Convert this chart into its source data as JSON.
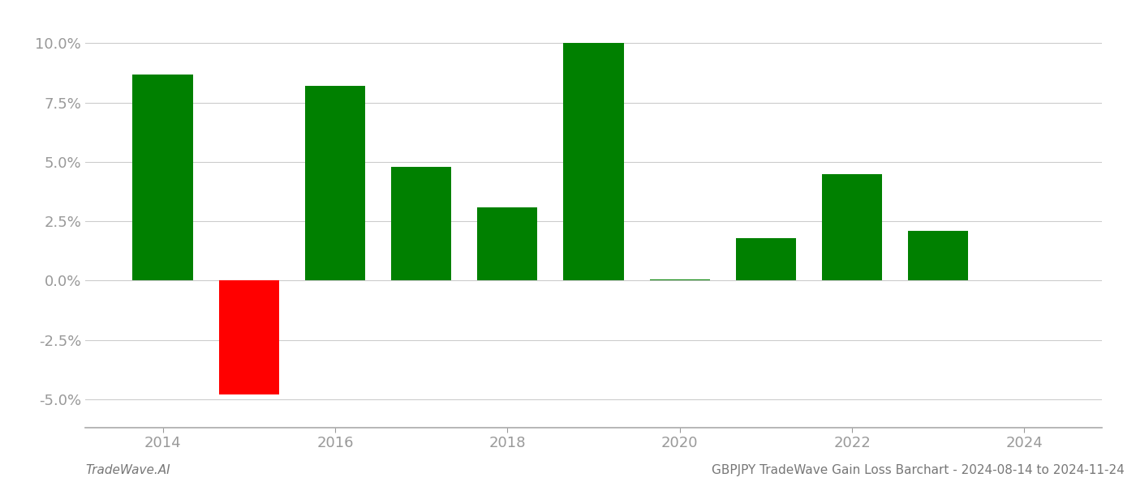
{
  "years": [
    2014,
    2015,
    2016,
    2017,
    2018,
    2019,
    2020,
    2021,
    2022,
    2023
  ],
  "values": [
    0.087,
    -0.048,
    0.082,
    0.048,
    0.031,
    0.1,
    0.0005,
    0.018,
    0.045,
    0.021
  ],
  "colors": [
    "#008000",
    "#ff0000",
    "#008000",
    "#008000",
    "#008000",
    "#008000",
    "#008000",
    "#008000",
    "#008000",
    "#008000"
  ],
  "bar_width": 0.7,
  "ylim": [
    -0.062,
    0.108
  ],
  "yticks": [
    -0.05,
    -0.025,
    0.0,
    0.025,
    0.05,
    0.075,
    0.1
  ],
  "xticks": [
    2014,
    2016,
    2018,
    2020,
    2022,
    2024
  ],
  "xlim": [
    2013.1,
    2024.9
  ],
  "footer_left": "TradeWave.AI",
  "footer_right": "GBPJPY TradeWave Gain Loss Barchart - 2024-08-14 to 2024-11-24",
  "background_color": "#ffffff",
  "grid_color": "#cccccc",
  "grid_linewidth": 0.8,
  "tick_color": "#999999",
  "footer_fontsize": 11,
  "tick_fontsize": 13,
  "spine_color": "#aaaaaa"
}
